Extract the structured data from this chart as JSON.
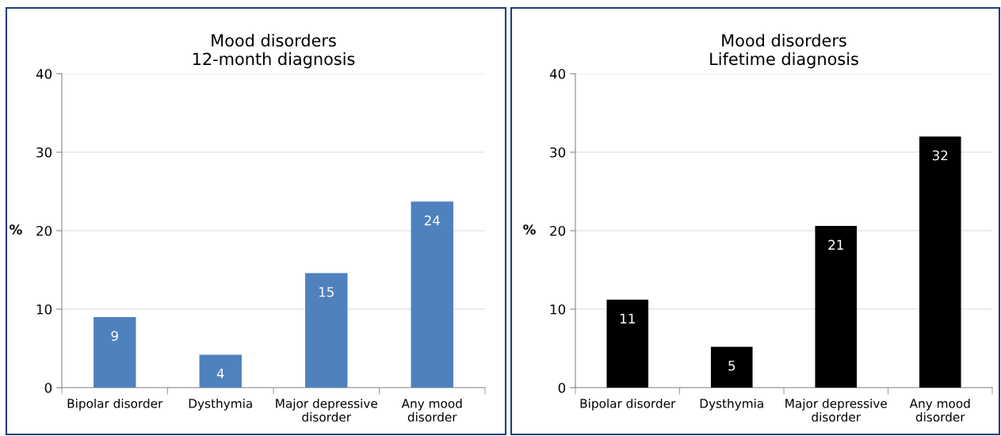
{
  "chart_data": [
    {
      "type": "bar",
      "title": "Mood disorders\n12-month diagnosis",
      "ylabel": "%",
      "categories": [
        "Bipolar disorder",
        "Dysthymia",
        "Major depressive\ndisorder",
        "Any mood\ndisorder"
      ],
      "values": [
        9.0,
        4.2,
        14.6,
        23.7
      ],
      "value_labels": [
        "9",
        "4",
        "15",
        "24"
      ],
      "color": "#4f81bd",
      "ylim": [
        0,
        40
      ],
      "yticks": [
        0,
        10,
        20,
        30,
        40
      ],
      "grid": "y",
      "legend": false
    },
    {
      "type": "bar",
      "title": "Mood disorders\nLifetime diagnosis",
      "ylabel": "%",
      "categories": [
        "Bipolar disorder",
        "Dysthymia",
        "Major depressive\ndisorder",
        "Any mood\ndisorder"
      ],
      "values": [
        11.2,
        5.2,
        20.6,
        32.0
      ],
      "value_labels": [
        "11",
        "5",
        "21",
        "32"
      ],
      "color": "#000000",
      "ylim": [
        0,
        40
      ],
      "yticks": [
        0,
        10,
        20,
        30,
        40
      ],
      "grid": "y",
      "legend": false
    }
  ]
}
